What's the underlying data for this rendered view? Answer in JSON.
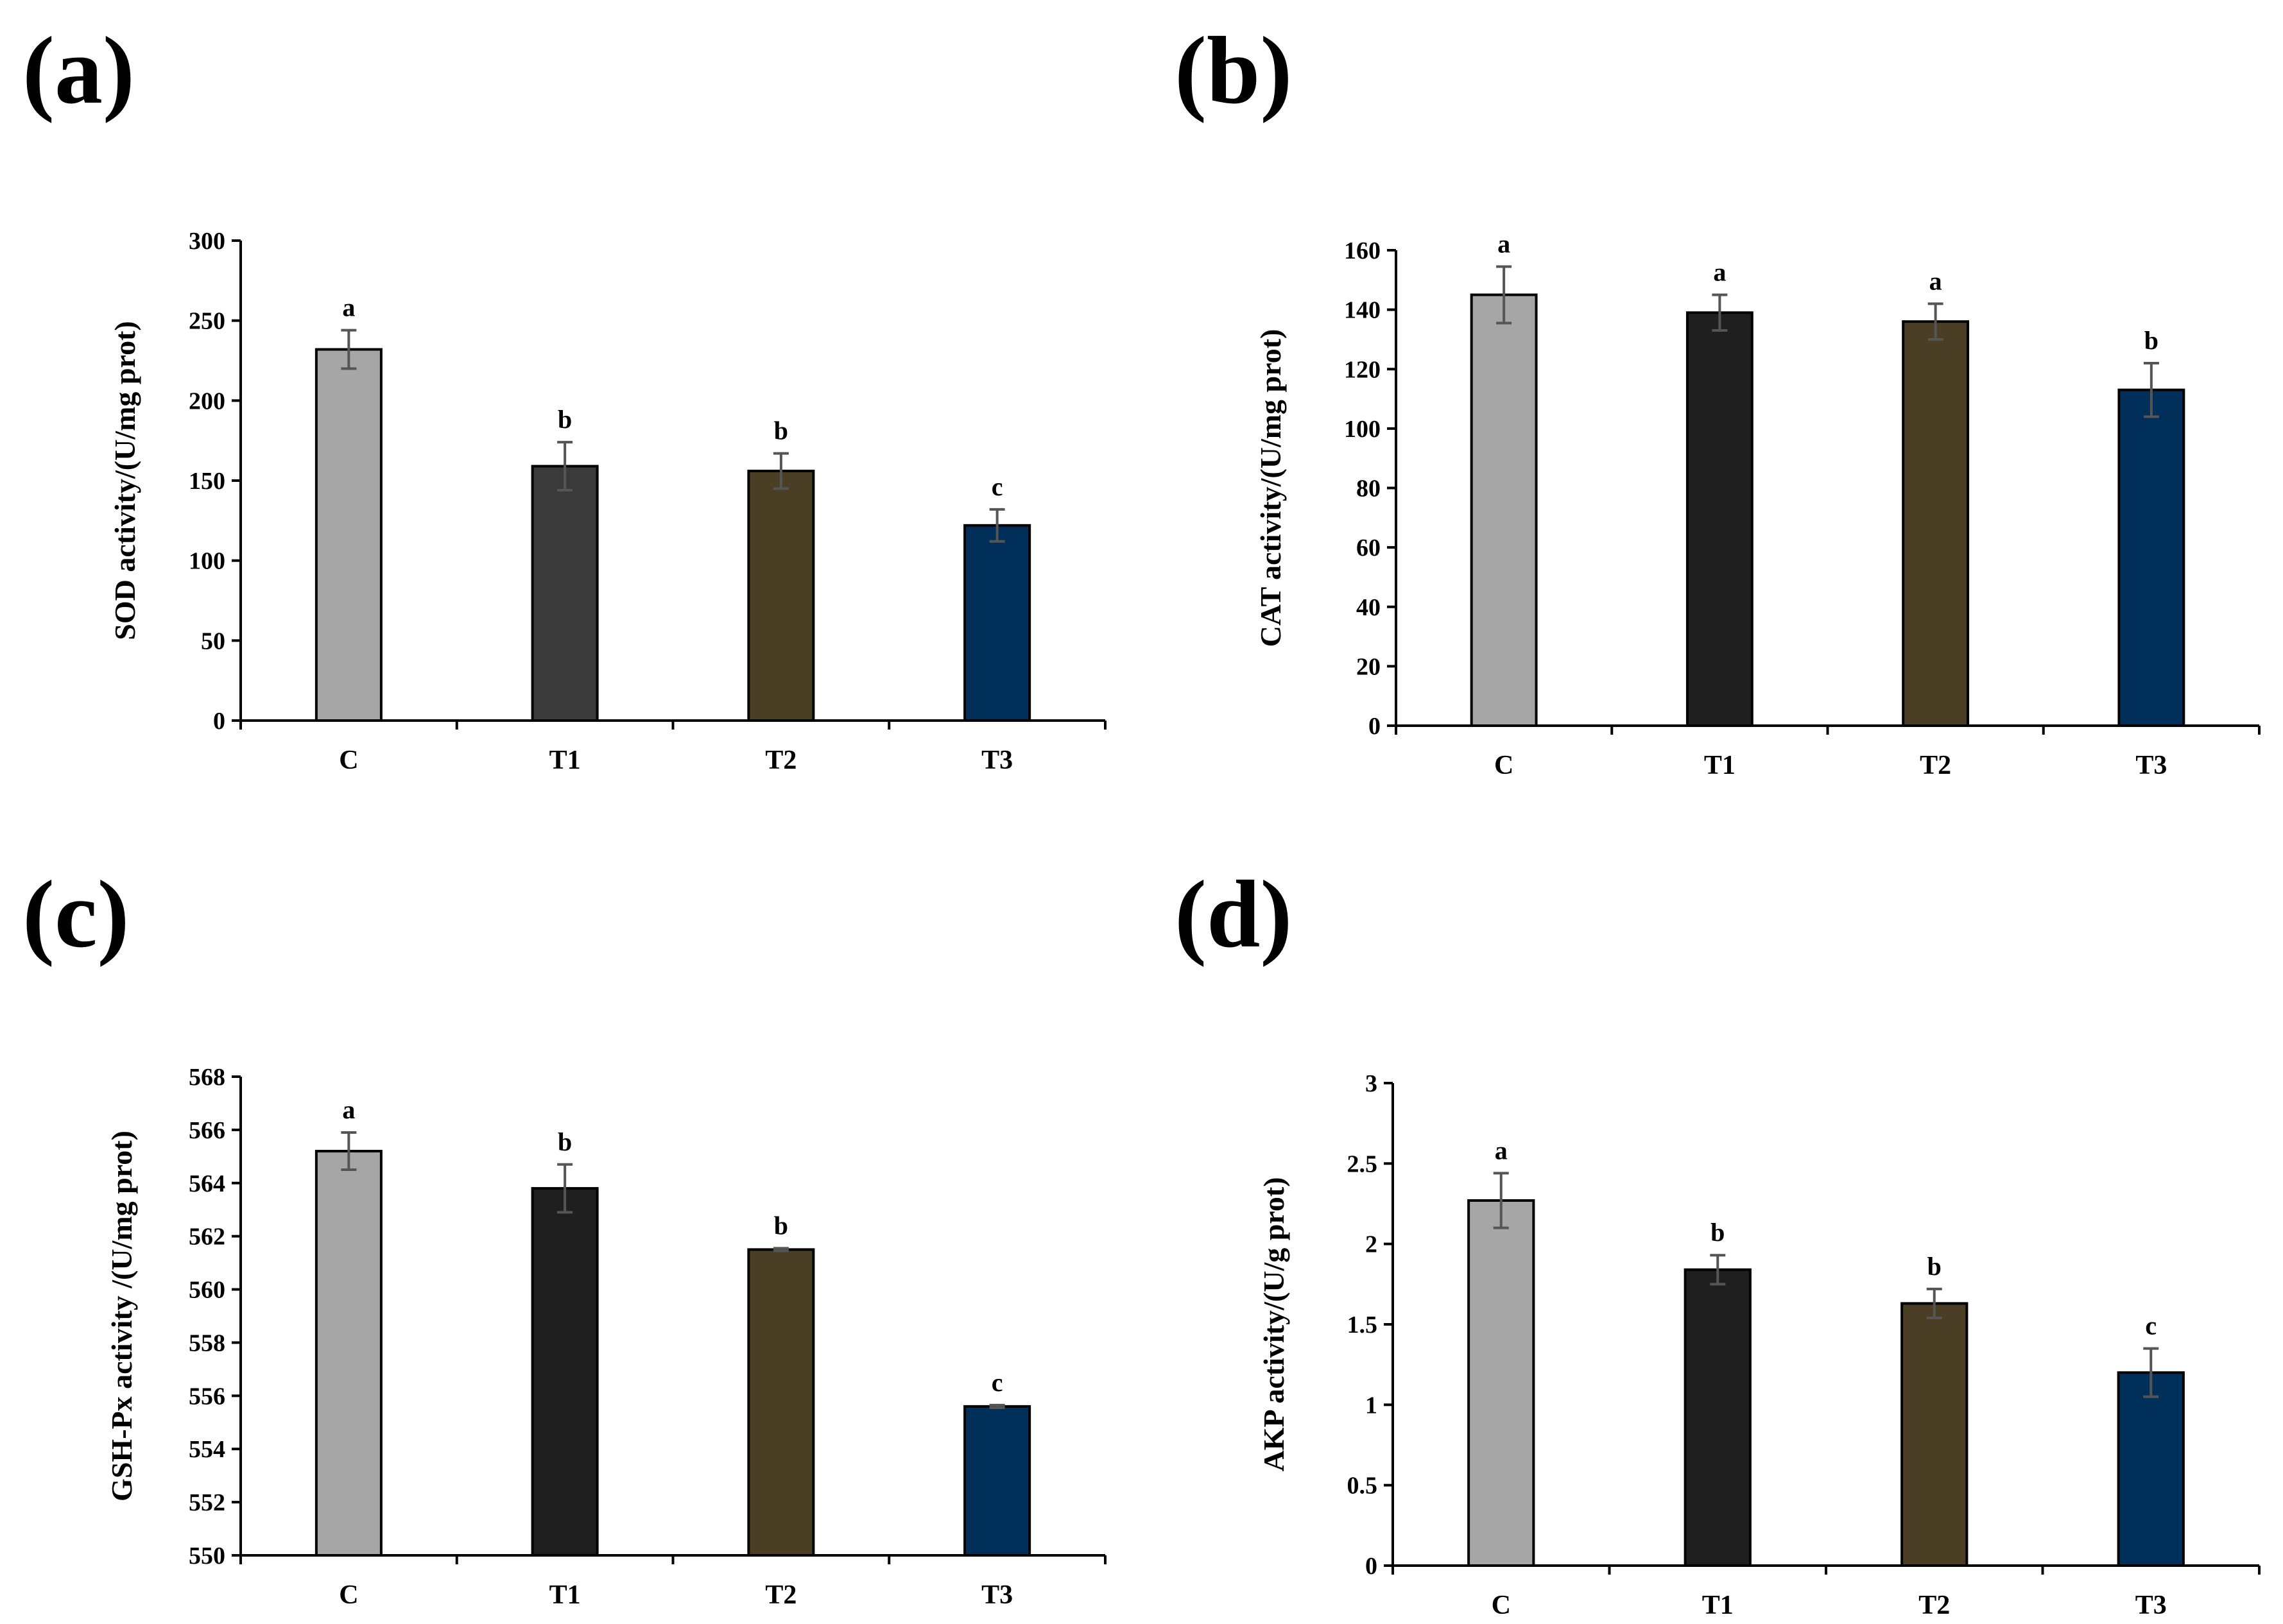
{
  "chart_data": [
    {
      "type": "bar",
      "panel_label": "(a)",
      "title": "",
      "xlabel": "",
      "ylabel": "SOD activity/(U/mg prot)",
      "categories": [
        "C",
        "T1",
        "T2",
        "T3"
      ],
      "values": [
        232,
        159,
        156,
        122
      ],
      "errors": [
        12,
        15,
        11,
        10
      ],
      "significance": [
        "a",
        "b",
        "b",
        "c"
      ],
      "colors": [
        "#a6a6a6",
        "#3a3a3a",
        "#4a3f24",
        "#00305a"
      ],
      "ylim": [
        0,
        300
      ],
      "yticks": [
        0,
        50,
        100,
        150,
        200,
        250,
        300
      ],
      "ytick_labels": [
        "0",
        "50",
        "100",
        "150",
        "200",
        "250",
        "300"
      ],
      "grid": false
    },
    {
      "type": "bar",
      "panel_label": "(b)",
      "title": "",
      "xlabel": "",
      "ylabel": "CAT activity/(U/mg prot)",
      "categories": [
        "C",
        "T1",
        "T2",
        "T3"
      ],
      "values": [
        145,
        139,
        136,
        113
      ],
      "errors": [
        9.5,
        6,
        6,
        9
      ],
      "significance": [
        "a",
        "a",
        "a",
        "b"
      ],
      "colors": [
        "#a6a6a6",
        "#1f1f1f",
        "#4a3f24",
        "#00305a"
      ],
      "ylim": [
        0,
        160
      ],
      "yticks": [
        0,
        20,
        40,
        60,
        80,
        100,
        120,
        140,
        160
      ],
      "ytick_labels": [
        "0",
        "20",
        "40",
        "60",
        "80",
        "100",
        "120",
        "140",
        "160"
      ],
      "grid": false
    },
    {
      "type": "bar",
      "panel_label": "(c)",
      "title": "",
      "xlabel": "",
      "ylabel": "GSH-Px activity /(U/mg prot)",
      "categories": [
        "C",
        "T1",
        "T2",
        "T3"
      ],
      "values": [
        565.2,
        563.8,
        561.5,
        555.6
      ],
      "errors": [
        0.7,
        0.9,
        0.05,
        0.05
      ],
      "significance": [
        "a",
        "b",
        "b",
        "c"
      ],
      "colors": [
        "#a6a6a6",
        "#1f1f1f",
        "#4a3f24",
        "#00305a"
      ],
      "ylim": [
        550,
        568
      ],
      "yticks": [
        550,
        552,
        554,
        556,
        558,
        560,
        562,
        564,
        566,
        568
      ],
      "ytick_labels": [
        "550",
        "552",
        "554",
        "556",
        "558",
        "560",
        "562",
        "564",
        "566",
        "568"
      ],
      "grid": false
    },
    {
      "type": "bar",
      "panel_label": "(d)",
      "title": "",
      "xlabel": "",
      "ylabel": "AKP activity/(U/g prot)",
      "categories": [
        "C",
        "T1",
        "T2",
        "T3"
      ],
      "values": [
        2.27,
        1.84,
        1.63,
        1.2
      ],
      "errors": [
        0.17,
        0.09,
        0.09,
        0.15
      ],
      "significance": [
        "a",
        "b",
        "b",
        "c"
      ],
      "colors": [
        "#a6a6a6",
        "#1f1f1f",
        "#4a3f24",
        "#00305a"
      ],
      "ylim": [
        0,
        3
      ],
      "yticks": [
        0,
        0.5,
        1,
        1.5,
        2,
        2.5,
        3
      ],
      "ytick_labels": [
        "0",
        "0.5",
        "1",
        "1.5",
        "2",
        "2.5",
        "3"
      ],
      "grid": false
    }
  ]
}
